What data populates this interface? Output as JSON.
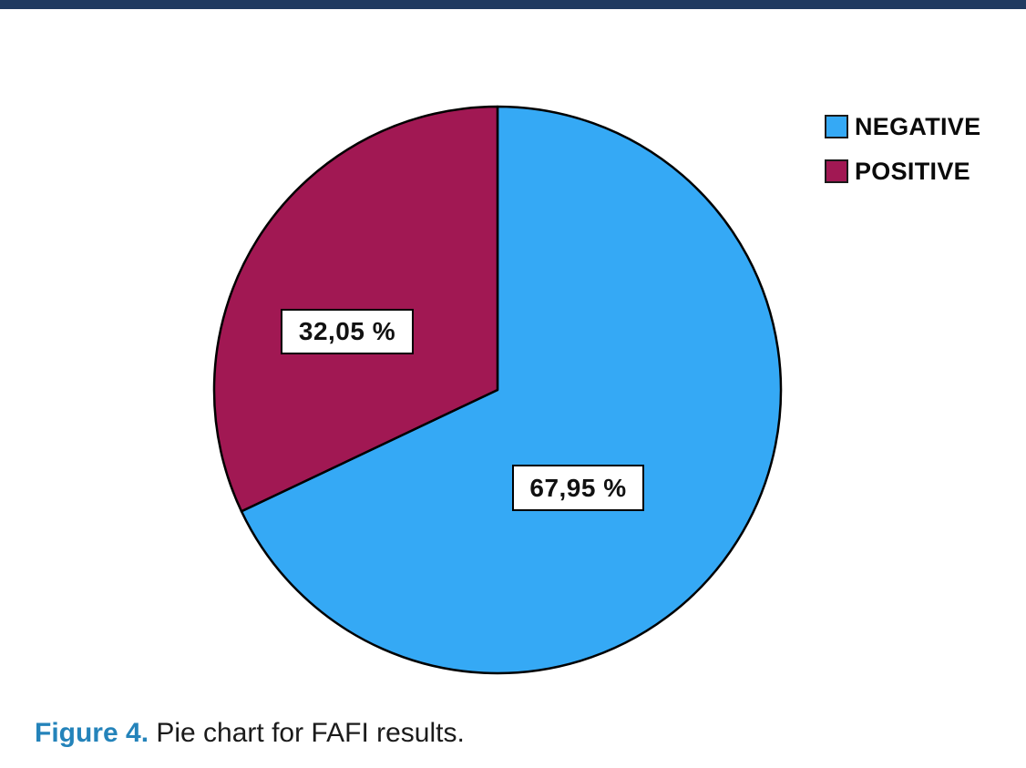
{
  "page": {
    "background": "#ffffff",
    "top_bar_color": "#203a60"
  },
  "chart_data": {
    "type": "pie",
    "title": "",
    "slices": [
      {
        "label": "NEGATIVE",
        "value": 67.95,
        "display": "67,95 %",
        "color": "#35a9f5"
      },
      {
        "label": "POSITIVE",
        "value": 32.05,
        "display": "32,05 %",
        "color": "#a11853"
      }
    ],
    "start_angle_deg": 0,
    "direction": "clockwise",
    "outline_color": "#000000",
    "legend_position": "top-right",
    "data_label_style": "white box with black border"
  },
  "caption": {
    "figure_label": "Figure 4.",
    "text": " Pie chart for FAFI results.",
    "label_color": "#2483ba"
  }
}
